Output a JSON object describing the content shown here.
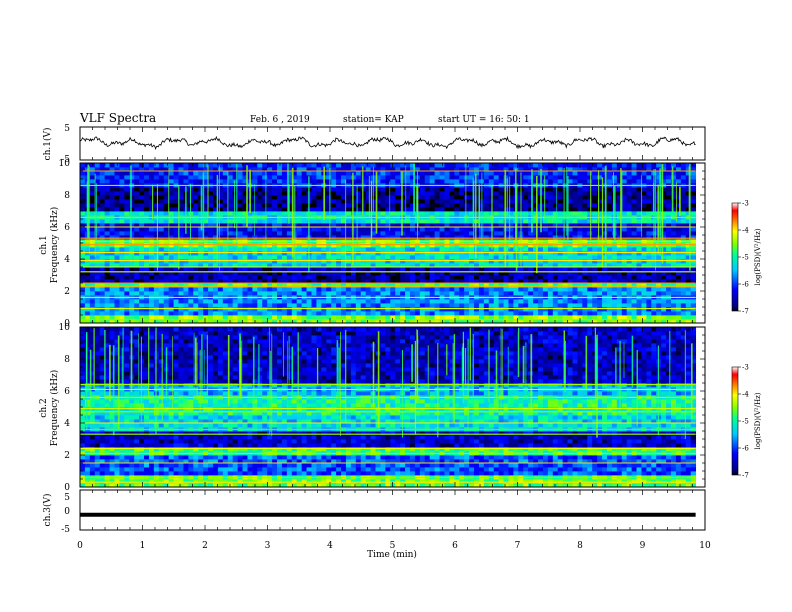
{
  "header": {
    "title": "VLF Spectra",
    "date": "Feb. 6  , 2019",
    "station": "station= KAP",
    "start": "start  UT =   16: 50: 1"
  },
  "chart_data": [
    {
      "type": "line",
      "panel": "ch1-waveform",
      "ylabel": "ch.1(V)",
      "ylim": [
        -5,
        5
      ],
      "y_ticks": [
        "5",
        "-5"
      ],
      "x_range_min": [
        0,
        9.85
      ],
      "approx_mean": 0.3,
      "approx_amplitude": 1.5,
      "color": "#000000"
    },
    {
      "type": "heatmap",
      "panel": "ch1-spectrogram",
      "ylabel": "ch.1\nFrequency (kHz)",
      "ylim": [
        0,
        10
      ],
      "y_ticks": [
        "0",
        "2",
        "4",
        "6",
        "8",
        "10"
      ],
      "x_range_min": [
        0,
        9.85
      ],
      "colorbar": {
        "label": "log(PSD)(V²/Hz)",
        "range": [
          -7,
          -3
        ],
        "ticks": [
          "-3",
          "-4",
          "-5",
          "-6",
          "-7"
        ]
      },
      "bands_khz": [
        {
          "from": 0.0,
          "to": 0.6,
          "level": -4.5
        },
        {
          "from": 0.6,
          "to": 2.2,
          "level": -5.7
        },
        {
          "from": 2.2,
          "to": 2.6,
          "level": -4.7
        },
        {
          "from": 2.6,
          "to": 3.6,
          "level": -6.6
        },
        {
          "from": 3.6,
          "to": 4.8,
          "level": -5.3
        },
        {
          "from": 4.8,
          "to": 5.3,
          "level": -4.6
        },
        {
          "from": 5.3,
          "to": 6.2,
          "level": -6.3
        },
        {
          "from": 6.2,
          "to": 7.0,
          "level": -5.2
        },
        {
          "from": 7.0,
          "to": 8.4,
          "level": -6.7
        },
        {
          "from": 8.4,
          "to": 10.0,
          "level": -6.1
        }
      ],
      "lines_khz": [
        0.2,
        0.9,
        1.6,
        2.3,
        2.5,
        3.2,
        3.5,
        3.9,
        4.4,
        4.9,
        5.1,
        5.3,
        6.0,
        6.6,
        8.6,
        9.5
      ]
    },
    {
      "type": "heatmap",
      "panel": "ch2-spectrogram",
      "ylabel": "ch.2\nFrequency (kHz)",
      "ylim": [
        0,
        10
      ],
      "y_ticks": [
        "0",
        "2",
        "4",
        "6",
        "8",
        "10"
      ],
      "x_range_min": [
        0,
        9.85
      ],
      "colorbar": {
        "label": "log(PSD)(V²/Hz)",
        "range": [
          -7,
          -3
        ],
        "ticks": [
          "-3",
          "-4",
          "-5",
          "-6",
          "-7"
        ]
      },
      "bands_khz": [
        {
          "from": 0.0,
          "to": 0.8,
          "level": -4.6
        },
        {
          "from": 0.8,
          "to": 2.0,
          "level": -5.9
        },
        {
          "from": 2.0,
          "to": 2.6,
          "level": -4.8
        },
        {
          "from": 2.6,
          "to": 3.6,
          "level": -6.5
        },
        {
          "from": 3.6,
          "to": 4.6,
          "level": -5.3
        },
        {
          "from": 4.6,
          "to": 5.8,
          "level": -5.0
        },
        {
          "from": 5.8,
          "to": 6.6,
          "level": -5.5
        },
        {
          "from": 6.6,
          "to": 10.0,
          "level": -6.5
        }
      ],
      "lines_khz": [
        0.3,
        0.6,
        1.5,
        2.1,
        2.4,
        3.3,
        3.6,
        4.0,
        4.7,
        4.9,
        5.6,
        6.1,
        6.4
      ]
    },
    {
      "type": "line",
      "panel": "ch3-waveform",
      "ylabel": "ch.3(V)",
      "ylim": [
        -5,
        5
      ],
      "y_ticks": [
        "5",
        "0",
        "-5"
      ],
      "x_range_min": [
        0,
        9.85
      ],
      "value": -1.2,
      "color": "#000000"
    }
  ],
  "x_axis": {
    "label": "Time  (min)",
    "ticks": [
      "0",
      "1",
      "2",
      "3",
      "4",
      "5",
      "6",
      "7",
      "8",
      "9",
      "10"
    ],
    "range": [
      0,
      10
    ]
  }
}
